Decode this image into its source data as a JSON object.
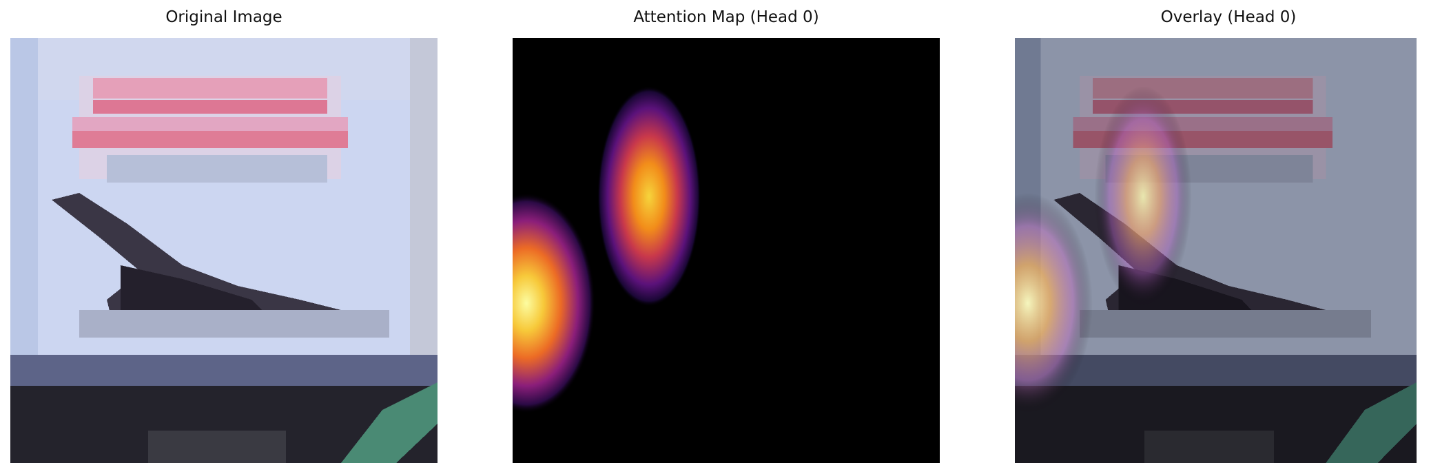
{
  "panels": [
    {
      "title": "Original Image"
    },
    {
      "title": "Attention Map (Head 0)"
    },
    {
      "title": "Overlay (Head 0)"
    }
  ],
  "colors": {
    "sky": "#c9d4f0",
    "banner_text": "#d9607e",
    "banner_bg": "#e7d6e4",
    "bird": "#2c2733",
    "ground": "#23222b",
    "stripe": "#4f8f78",
    "heat_hot": "#fcfca0",
    "heat_mid": "#f08a1e",
    "heat_low": "#6e1a78"
  }
}
